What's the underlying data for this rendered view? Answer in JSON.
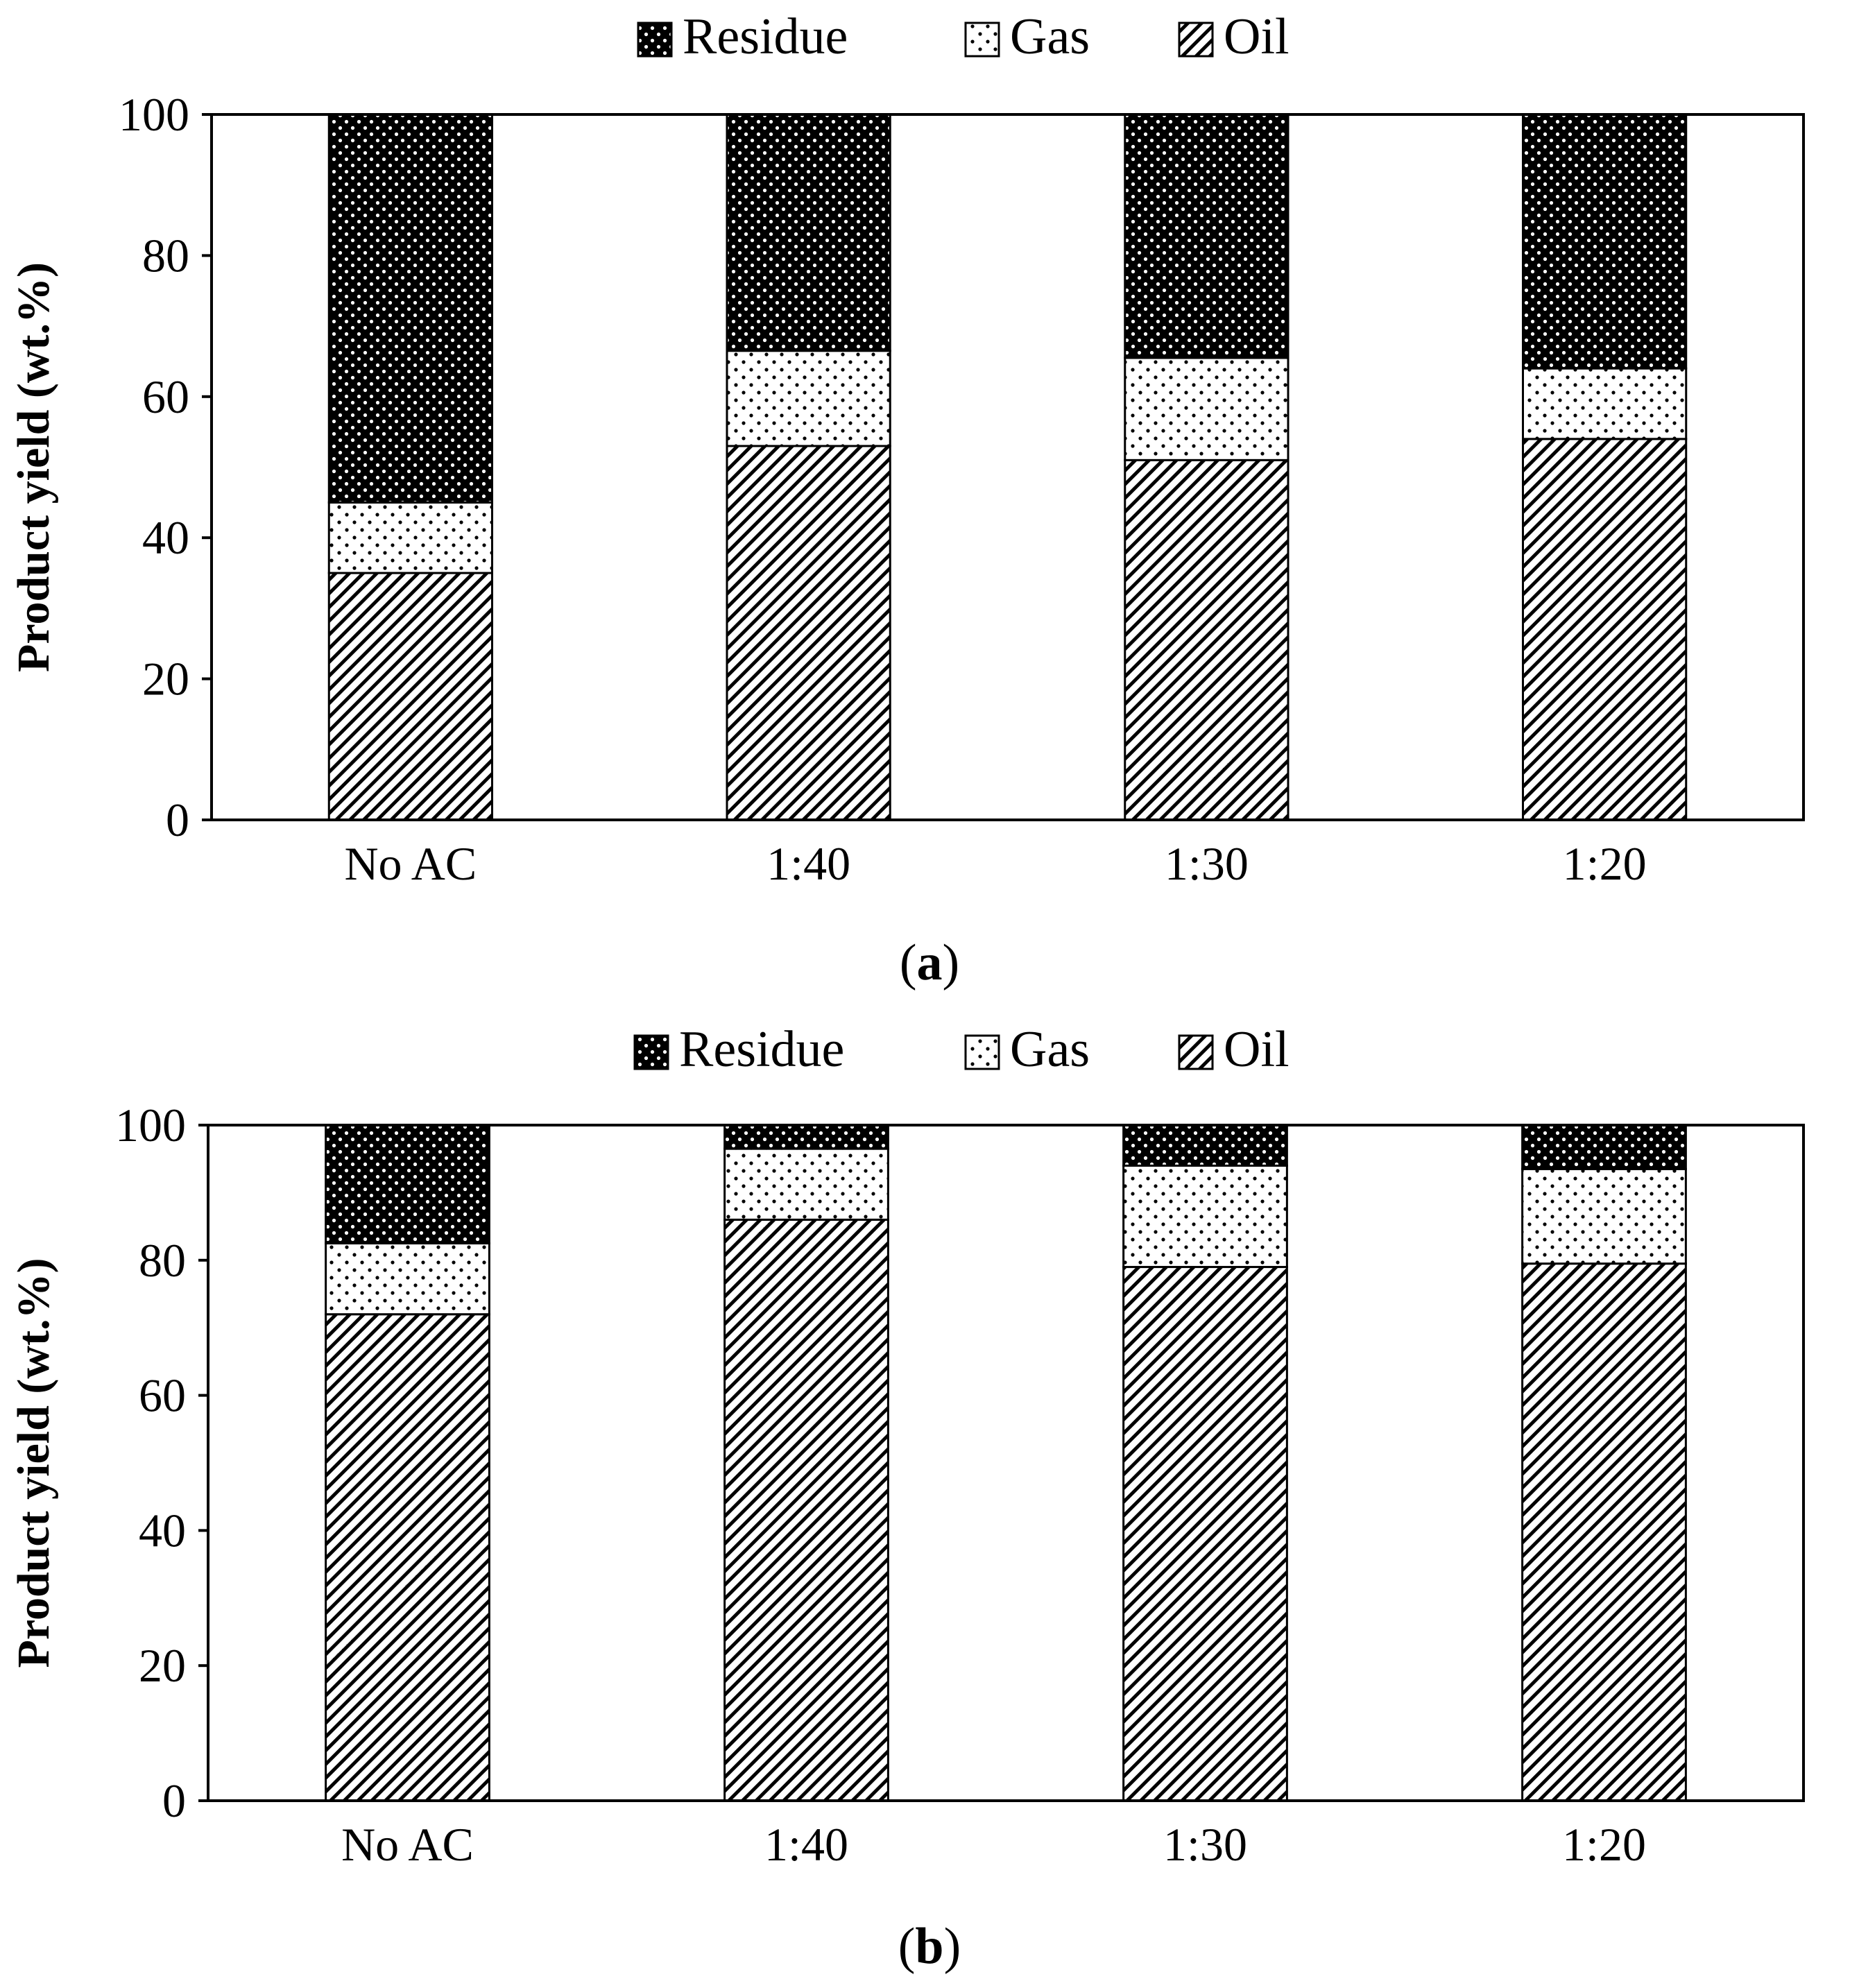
{
  "chart_data": [
    {
      "type": "bar",
      "stacked": true,
      "panel": "a",
      "caption": {
        "open": "(",
        "letter": "a",
        "close": ")"
      },
      "categories": [
        "No AC",
        "1:40",
        "1:30",
        "1:20"
      ],
      "series": [
        {
          "name": "Oil",
          "pattern": "diagonal-hatch",
          "values": [
            35,
            53,
            51,
            54
          ]
        },
        {
          "name": "Gas",
          "pattern": "sparse-dots",
          "values": [
            10,
            13.5,
            14.5,
            10
          ]
        },
        {
          "name": "Residue",
          "pattern": "dense-dark-dots",
          "values": [
            55,
            33.5,
            34.5,
            36
          ]
        }
      ],
      "legend_order": [
        "Residue",
        "Gas",
        "Oil"
      ],
      "legend_position": "top-center",
      "title": "",
      "xlabel": "",
      "ylabel": "Product yield (wt.%)",
      "ylim": [
        0,
        100
      ],
      "yticks": [
        "0",
        "20",
        "40",
        "60",
        "80",
        "100"
      ],
      "grid": false
    },
    {
      "type": "bar",
      "stacked": true,
      "panel": "b",
      "caption": {
        "open": "(",
        "letter": "b",
        "close": ")"
      },
      "categories": [
        "No AC",
        "1:40",
        "1:30",
        "1:20"
      ],
      "series": [
        {
          "name": "Oil",
          "pattern": "diagonal-hatch",
          "values": [
            72,
            86,
            79,
            79.5
          ]
        },
        {
          "name": "Gas",
          "pattern": "sparse-dots",
          "values": [
            10.5,
            10.5,
            15,
            14
          ]
        },
        {
          "name": "Residue",
          "pattern": "dense-dark-dots",
          "values": [
            17.5,
            3.5,
            6,
            6.5
          ]
        }
      ],
      "legend_order": [
        "Residue",
        "Gas",
        "Oil"
      ],
      "legend_position": "top-center",
      "title": "",
      "xlabel": "",
      "ylabel": "Product yield (wt.%)",
      "ylim": [
        0,
        100
      ],
      "yticks": [
        "0",
        "20",
        "40",
        "60",
        "80",
        "100"
      ],
      "grid": false
    }
  ]
}
